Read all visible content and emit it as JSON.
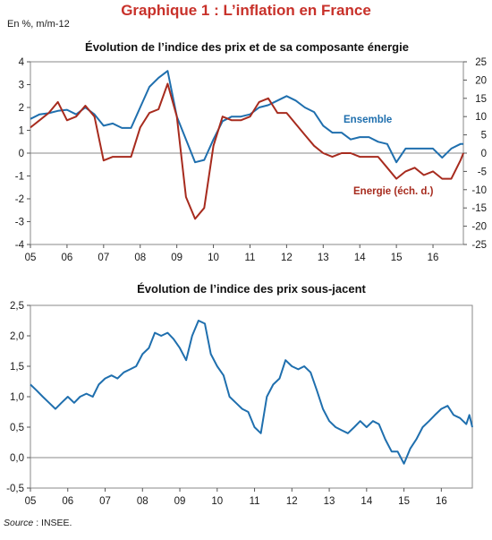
{
  "header": {
    "title": "Graphique 1 : L’inflation en France",
    "unit": "En %, m/m-12"
  },
  "source": {
    "label": "Source",
    "rest": " : INSEE."
  },
  "chart_data": [
    {
      "type": "line",
      "title": "Évolution de l’indice des prix et de sa composante énergie",
      "xlabel": "",
      "ylabel": "",
      "x_ticks": [
        "05",
        "06",
        "07",
        "08",
        "09",
        "10",
        "11",
        "12",
        "13",
        "14",
        "15",
        "16"
      ],
      "x_range": [
        2005.0,
        2016.83
      ],
      "y_left_ticks": [
        "4",
        "3",
        "2",
        "1",
        "0",
        "-1",
        "-2",
        "-3",
        "-4"
      ],
      "y_left_range": [
        -4,
        4
      ],
      "y_right_ticks": [
        "25",
        "20",
        "15",
        "10",
        "5",
        "0",
        "-5",
        "-10",
        "-15",
        "-20",
        "-25"
      ],
      "y_right_range": [
        -25,
        25
      ],
      "grid": false,
      "series": [
        {
          "name": "Ensemble",
          "axis": "left",
          "color": "#1f6fae",
          "points": [
            [
              2005.0,
              1.5
            ],
            [
              2005.25,
              1.7
            ],
            [
              2005.5,
              1.75
            ],
            [
              2005.75,
              1.85
            ],
            [
              2006.0,
              1.9
            ],
            [
              2006.25,
              1.7
            ],
            [
              2006.5,
              2.0
            ],
            [
              2006.75,
              1.7
            ],
            [
              2007.0,
              1.2
            ],
            [
              2007.25,
              1.3
            ],
            [
              2007.5,
              1.1
            ],
            [
              2007.75,
              1.1
            ],
            [
              2008.0,
              2.0
            ],
            [
              2008.25,
              2.9
            ],
            [
              2008.5,
              3.3
            ],
            [
              2008.75,
              3.6
            ],
            [
              2009.0,
              1.6
            ],
            [
              2009.25,
              0.6
            ],
            [
              2009.5,
              -0.4
            ],
            [
              2009.75,
              -0.3
            ],
            [
              2010.0,
              0.6
            ],
            [
              2010.25,
              1.4
            ],
            [
              2010.5,
              1.6
            ],
            [
              2010.75,
              1.6
            ],
            [
              2011.0,
              1.7
            ],
            [
              2011.25,
              2.0
            ],
            [
              2011.5,
              2.1
            ],
            [
              2011.75,
              2.3
            ],
            [
              2012.0,
              2.5
            ],
            [
              2012.25,
              2.3
            ],
            [
              2012.5,
              2.0
            ],
            [
              2012.75,
              1.8
            ],
            [
              2013.0,
              1.2
            ],
            [
              2013.25,
              0.9
            ],
            [
              2013.5,
              0.9
            ],
            [
              2013.75,
              0.6
            ],
            [
              2014.0,
              0.7
            ],
            [
              2014.25,
              0.7
            ],
            [
              2014.5,
              0.5
            ],
            [
              2014.75,
              0.4
            ],
            [
              2015.0,
              -0.4
            ],
            [
              2015.25,
              0.2
            ],
            [
              2015.5,
              0.2
            ],
            [
              2015.75,
              0.2
            ],
            [
              2016.0,
              0.2
            ],
            [
              2016.25,
              -0.2
            ],
            [
              2016.5,
              0.2
            ],
            [
              2016.75,
              0.4
            ],
            [
              2016.83,
              0.4
            ]
          ]
        },
        {
          "name": "Energie (éch. d.)",
          "axis": "right",
          "color": "#a72b1e",
          "points": [
            [
              2005.0,
              7
            ],
            [
              2005.25,
              9
            ],
            [
              2005.5,
              11
            ],
            [
              2005.75,
              14
            ],
            [
              2006.0,
              9
            ],
            [
              2006.25,
              10
            ],
            [
              2006.5,
              13
            ],
            [
              2006.75,
              10
            ],
            [
              2007.0,
              -2
            ],
            [
              2007.25,
              -1
            ],
            [
              2007.5,
              -1
            ],
            [
              2007.75,
              -1
            ],
            [
              2008.0,
              7
            ],
            [
              2008.25,
              11
            ],
            [
              2008.5,
              12
            ],
            [
              2008.75,
              19
            ],
            [
              2009.0,
              10
            ],
            [
              2009.25,
              -12
            ],
            [
              2009.5,
              -18
            ],
            [
              2009.75,
              -15
            ],
            [
              2010.0,
              2
            ],
            [
              2010.25,
              10
            ],
            [
              2010.5,
              9
            ],
            [
              2010.75,
              9
            ],
            [
              2011.0,
              10
            ],
            [
              2011.25,
              14
            ],
            [
              2011.5,
              15
            ],
            [
              2011.75,
              11
            ],
            [
              2012.0,
              11
            ],
            [
              2012.25,
              8
            ],
            [
              2012.5,
              5
            ],
            [
              2012.75,
              2
            ],
            [
              2013.0,
              0
            ],
            [
              2013.25,
              -1
            ],
            [
              2013.5,
              0
            ],
            [
              2013.75,
              0
            ],
            [
              2014.0,
              -1
            ],
            [
              2014.25,
              -1
            ],
            [
              2014.5,
              -1
            ],
            [
              2014.75,
              -4
            ],
            [
              2015.0,
              -7
            ],
            [
              2015.25,
              -5
            ],
            [
              2015.5,
              -4
            ],
            [
              2015.75,
              -6
            ],
            [
              2016.0,
              -5
            ],
            [
              2016.25,
              -7
            ],
            [
              2016.5,
              -7
            ],
            [
              2016.75,
              -2
            ],
            [
              2016.83,
              0
            ]
          ]
        }
      ]
    },
    {
      "type": "line",
      "title": "Évolution de l’indice des prix sous-jacent",
      "xlabel": "",
      "ylabel": "",
      "x_ticks": [
        "05",
        "06",
        "07",
        "08",
        "09",
        "10",
        "11",
        "12",
        "13",
        "14",
        "15",
        "16"
      ],
      "x_range": [
        2005.0,
        2016.83
      ],
      "y_ticks": [
        "2,5",
        "2,0",
        "1,5",
        "1,0",
        "0,5",
        "0,0",
        "-0,5"
      ],
      "y_range": [
        -0.5,
        2.5
      ],
      "grid": false,
      "series": [
        {
          "name": "",
          "color": "#1f6fae",
          "points": [
            [
              2005.0,
              1.2
            ],
            [
              2005.17,
              1.1
            ],
            [
              2005.33,
              1.0
            ],
            [
              2005.5,
              0.9
            ],
            [
              2005.67,
              0.8
            ],
            [
              2005.83,
              0.9
            ],
            [
              2006.0,
              1.0
            ],
            [
              2006.17,
              0.9
            ],
            [
              2006.33,
              1.0
            ],
            [
              2006.5,
              1.05
            ],
            [
              2006.67,
              1.0
            ],
            [
              2006.83,
              1.2
            ],
            [
              2007.0,
              1.3
            ],
            [
              2007.17,
              1.35
            ],
            [
              2007.33,
              1.3
            ],
            [
              2007.5,
              1.4
            ],
            [
              2007.67,
              1.45
            ],
            [
              2007.83,
              1.5
            ],
            [
              2008.0,
              1.7
            ],
            [
              2008.17,
              1.8
            ],
            [
              2008.33,
              2.05
            ],
            [
              2008.5,
              2.0
            ],
            [
              2008.67,
              2.05
            ],
            [
              2008.83,
              1.95
            ],
            [
              2009.0,
              1.8
            ],
            [
              2009.17,
              1.6
            ],
            [
              2009.33,
              2.0
            ],
            [
              2009.5,
              2.25
            ],
            [
              2009.67,
              2.2
            ],
            [
              2009.83,
              1.7
            ],
            [
              2010.0,
              1.5
            ],
            [
              2010.17,
              1.35
            ],
            [
              2010.33,
              1.0
            ],
            [
              2010.5,
              0.9
            ],
            [
              2010.67,
              0.8
            ],
            [
              2010.83,
              0.75
            ],
            [
              2011.0,
              0.5
            ],
            [
              2011.17,
              0.4
            ],
            [
              2011.33,
              1.0
            ],
            [
              2011.5,
              1.2
            ],
            [
              2011.67,
              1.3
            ],
            [
              2011.83,
              1.6
            ],
            [
              2012.0,
              1.5
            ],
            [
              2012.17,
              1.45
            ],
            [
              2012.33,
              1.5
            ],
            [
              2012.5,
              1.4
            ],
            [
              2012.67,
              1.1
            ],
            [
              2012.83,
              0.8
            ],
            [
              2013.0,
              0.6
            ],
            [
              2013.17,
              0.5
            ],
            [
              2013.33,
              0.45
            ],
            [
              2013.5,
              0.4
            ],
            [
              2013.67,
              0.5
            ],
            [
              2013.83,
              0.6
            ],
            [
              2014.0,
              0.5
            ],
            [
              2014.17,
              0.6
            ],
            [
              2014.33,
              0.55
            ],
            [
              2014.5,
              0.3
            ],
            [
              2014.67,
              0.1
            ],
            [
              2014.83,
              0.1
            ],
            [
              2015.0,
              -0.1
            ],
            [
              2015.17,
              0.15
            ],
            [
              2015.33,
              0.3
            ],
            [
              2015.5,
              0.5
            ],
            [
              2015.67,
              0.6
            ],
            [
              2015.83,
              0.7
            ],
            [
              2016.0,
              0.8
            ],
            [
              2016.17,
              0.85
            ],
            [
              2016.33,
              0.7
            ],
            [
              2016.5,
              0.65
            ],
            [
              2016.67,
              0.55
            ],
            [
              2016.75,
              0.7
            ],
            [
              2016.83,
              0.5
            ]
          ]
        }
      ]
    }
  ]
}
